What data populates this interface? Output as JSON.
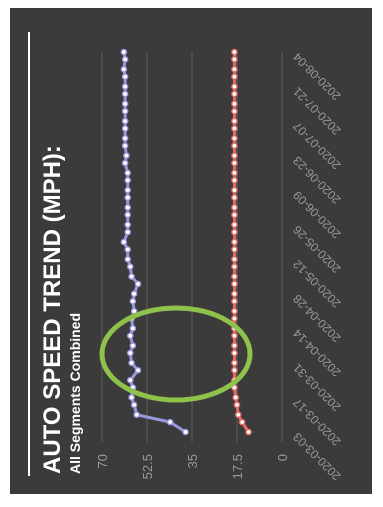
{
  "chart_data": {
    "type": "line",
    "title": "AUTO SPEED TREND (MPH):",
    "subtitle": "All Segments Combined",
    "xlabel": "",
    "ylabel": "",
    "ylim": [
      0,
      70
    ],
    "y_ticks": [
      "0",
      "17.5",
      "35",
      "52.5",
      "70"
    ],
    "x_tick_labels": [
      "2020-03-03",
      "2020-03-17",
      "2020-03-31",
      "2020-04-14",
      "2020-04-28",
      "2020-05-12",
      "2020-05-26",
      "2020-06-09",
      "2020-06-23",
      "2020-07-07",
      "2020-07-21",
      "2020-08-04"
    ],
    "x": [
      "2020-03-03",
      "2020-03-07",
      "2020-03-10",
      "2020-03-14",
      "2020-03-17",
      "2020-03-21",
      "2020-03-24",
      "2020-03-28",
      "2020-03-31",
      "2020-04-04",
      "2020-04-07",
      "2020-04-11",
      "2020-04-14",
      "2020-04-18",
      "2020-04-21",
      "2020-04-25",
      "2020-04-28",
      "2020-05-02",
      "2020-05-05",
      "2020-05-09",
      "2020-05-12",
      "2020-05-16",
      "2020-05-19",
      "2020-05-23",
      "2020-05-26",
      "2020-05-30",
      "2020-06-02",
      "2020-06-06",
      "2020-06-09",
      "2020-06-13",
      "2020-06-16",
      "2020-06-20",
      "2020-06-23",
      "2020-06-27",
      "2020-06-30",
      "2020-07-04",
      "2020-07-07",
      "2020-07-11",
      "2020-07-14",
      "2020-07-18",
      "2020-07-21",
      "2020-07-25",
      "2020-07-28",
      "2020-08-01",
      "2020-08-04"
    ],
    "series": [
      {
        "color": "#9a98dc",
        "values": [
          37.5,
          43.5,
          56.5,
          57.5,
          58.5,
          58.0,
          59.0,
          56.0,
          58.5,
          59.0,
          58.0,
          59.0,
          58.0,
          58.5,
          57.5,
          58.0,
          57.5,
          56.0,
          58.5,
          59.0,
          60.0,
          60.0,
          61.5,
          60.0,
          60.0,
          60.0,
          60.0,
          60.0,
          60.0,
          60.0,
          60.0,
          61.0,
          60.5,
          61.0,
          61.0,
          61.0,
          61.0,
          61.0,
          61.0,
          61.0,
          61.0,
          61.0,
          61.5,
          61.0,
          61.5
        ]
      },
      {
        "color": "#e86a66",
        "values": [
          13.0,
          15.5,
          17.0,
          17.5,
          18.0,
          18.5,
          18.5,
          18.5,
          18.5,
          18.5,
          18.5,
          18.5,
          18.5,
          18.5,
          18.5,
          18.5,
          18.5,
          18.5,
          18.5,
          18.5,
          18.5,
          18.5,
          18.5,
          18.5,
          18.5,
          18.5,
          18.5,
          18.5,
          18.5,
          18.5,
          18.5,
          18.5,
          18.5,
          18.5,
          18.5,
          18.5,
          18.5,
          18.5,
          18.5,
          18.5,
          18.5,
          18.5,
          18.5,
          18.5,
          18.5
        ]
      }
    ],
    "grid": true,
    "annotation_color": "#8ec24a"
  }
}
